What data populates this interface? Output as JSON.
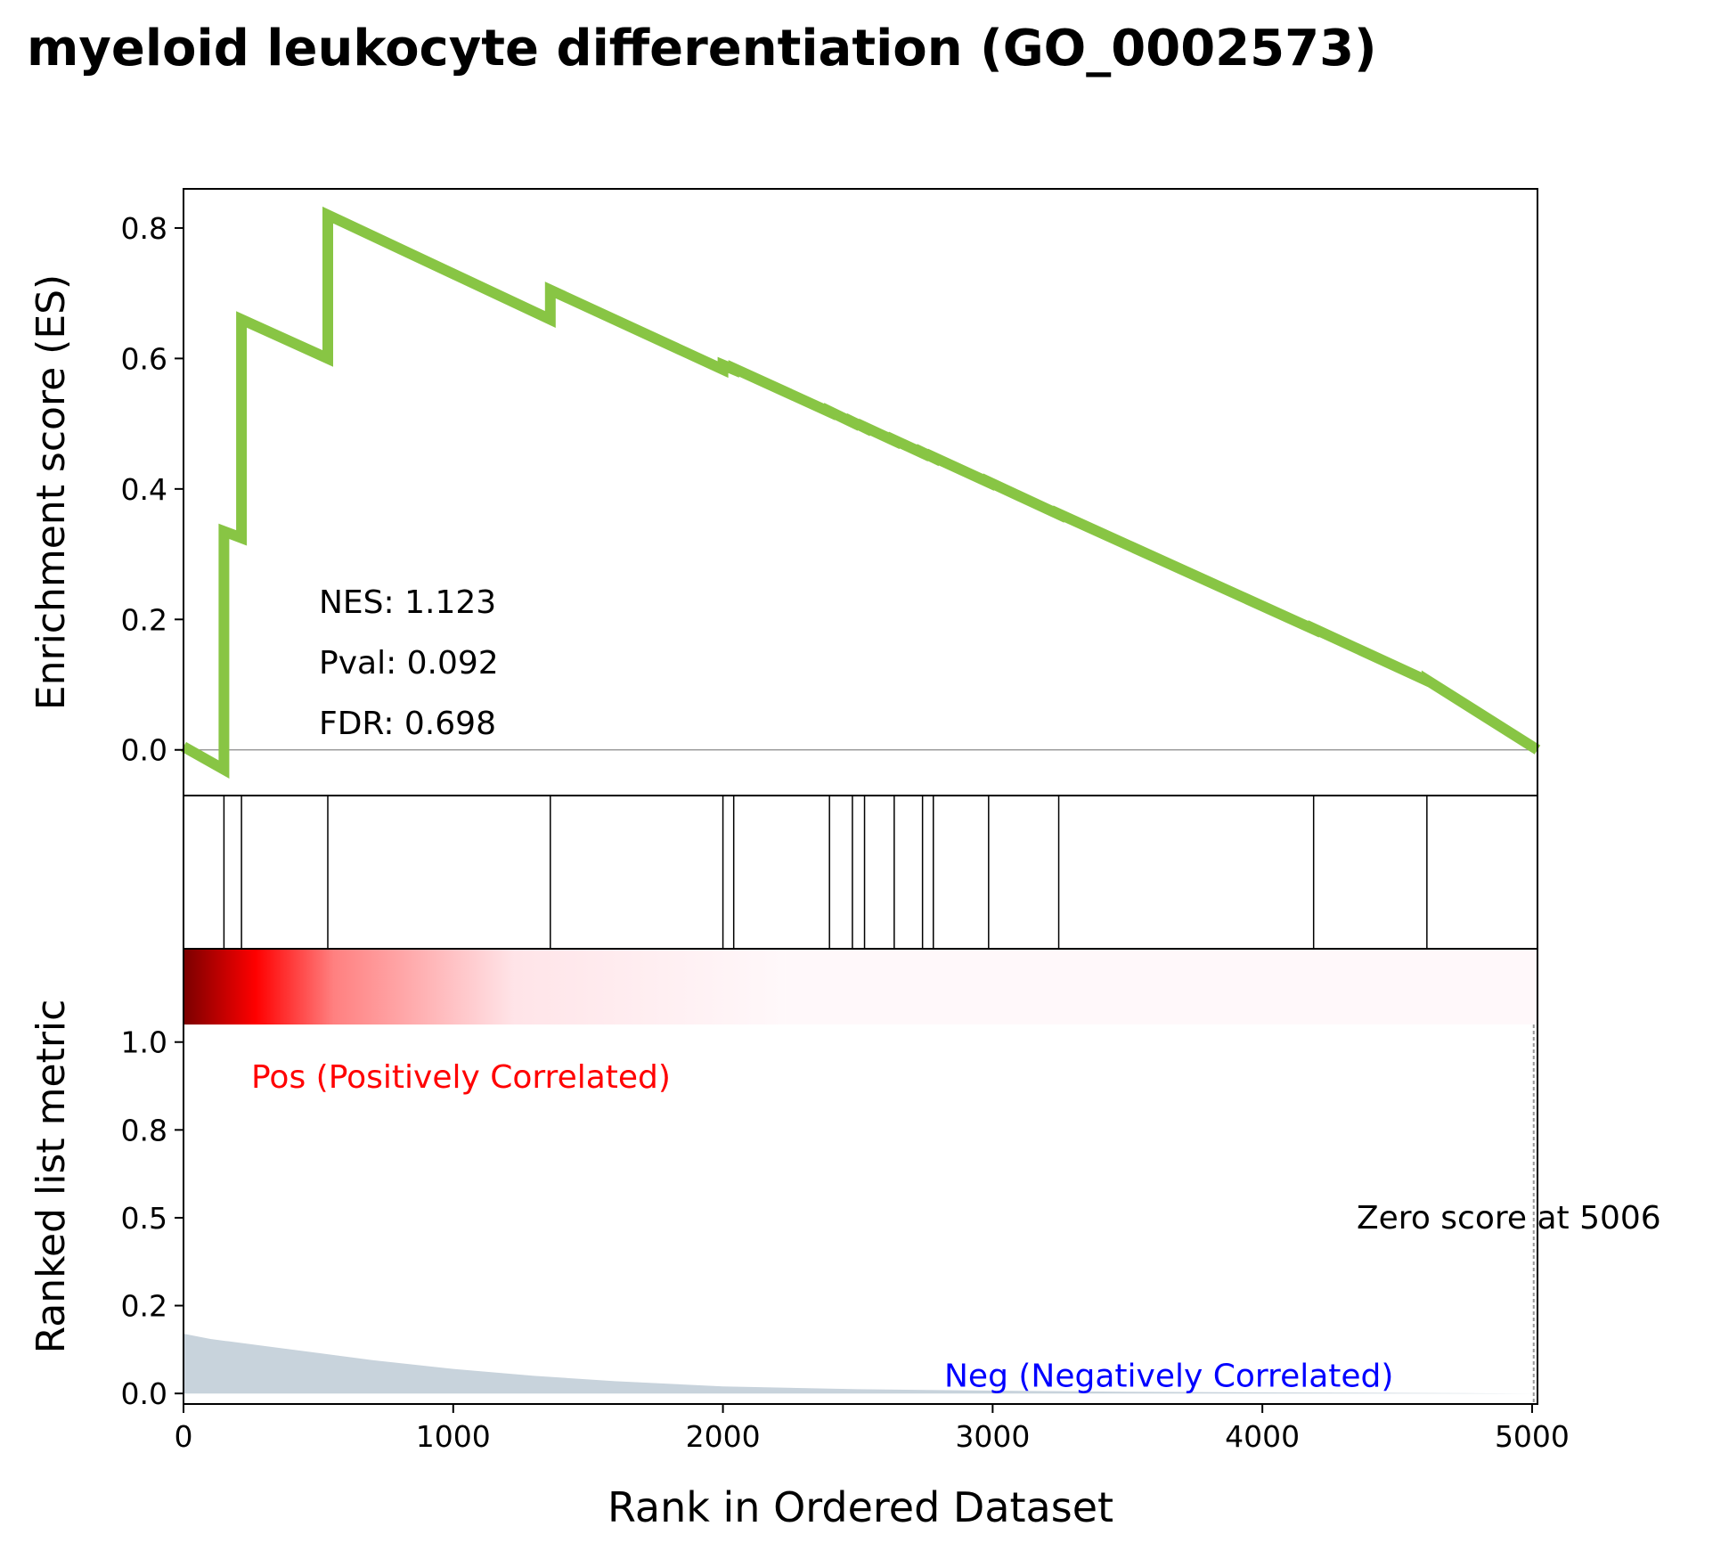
{
  "title": "myeloid leukocyte differentiation (GO_0002573)",
  "chart_data": {
    "type": "line",
    "title": "myeloid leukocyte differentiation (GO_0002573)",
    "xlabel": "Rank in Ordered Dataset",
    "xlim": [
      0,
      5020
    ],
    "x_ticks": [
      "0",
      "1000",
      "2000",
      "3000",
      "4000",
      "5000"
    ],
    "colors": {
      "es_line": "#88c544",
      "metric_fill": "#c8d3dc",
      "pos_label": "#ff0000",
      "neg_label": "#0000ff",
      "heat_dark": "#7a0000",
      "heat_mid": "#ff0000",
      "heat_end": "#fff8fa"
    },
    "es_panel": {
      "ylabel": "Enrichment score (ES)",
      "ylim": [
        -0.07,
        0.86
      ],
      "y_ticks": [
        "0.0",
        "0.2",
        "0.4",
        "0.6",
        "0.8"
      ],
      "zero_line": 0.0,
      "series": [
        {
          "x": [
            0,
            150,
            150,
            215,
            215,
            535,
            535,
            1360,
            1360,
            2000,
            2000,
            2040,
            2040,
            2395,
            2395,
            2480,
            2480,
            2525,
            2525,
            2635,
            2635,
            2740,
            2740,
            2780,
            2780,
            2985,
            2985,
            3245,
            3245,
            4190,
            4190,
            4610,
            4610,
            5020
          ],
          "y": [
            0.005,
            -0.03,
            0.335,
            0.325,
            0.66,
            0.6,
            0.82,
            0.66,
            0.705,
            0.583,
            0.59,
            0.583,
            0.585,
            0.518,
            0.519,
            0.502,
            0.503,
            0.494,
            0.495,
            0.474,
            0.475,
            0.455,
            0.456,
            0.448,
            0.449,
            0.41,
            0.411,
            0.361,
            0.362,
            0.185,
            0.186,
            0.106,
            0.107,
            0.0
          ]
        }
      ],
      "annotations": [
        "NES: 1.123",
        "Pval: 0.092",
        "FDR: 0.698"
      ]
    },
    "hits_panel": {
      "hit_positions": [
        150,
        215,
        535,
        1360,
        2000,
        2040,
        2395,
        2480,
        2525,
        2635,
        2740,
        2780,
        2985,
        3245,
        4190,
        4610
      ]
    },
    "metric_panel": {
      "ylabel": "Ranked list metric",
      "ylim": [
        -0.03,
        1.05
      ],
      "y_ticks": [
        "0.0",
        "0.2",
        "0.5",
        "0.8",
        "1.0"
      ],
      "y_tick_values": [
        0.0,
        0.25,
        0.5,
        0.75,
        1.0
      ],
      "fill": {
        "x": [
          0,
          100,
          300,
          500,
          700,
          1000,
          1300,
          1600,
          2000,
          2500,
          3000,
          3500,
          4000,
          5006
        ],
        "y": [
          0.17,
          0.155,
          0.135,
          0.115,
          0.095,
          0.07,
          0.05,
          0.035,
          0.02,
          0.012,
          0.008,
          0.005,
          0.003,
          0.0
        ]
      },
      "zero_cross": 5006,
      "zero_label": "Zero score at 5006",
      "pos_label": "Pos (Positively Correlated)",
      "neg_label": "Neg (Negatively Correlated)"
    }
  }
}
